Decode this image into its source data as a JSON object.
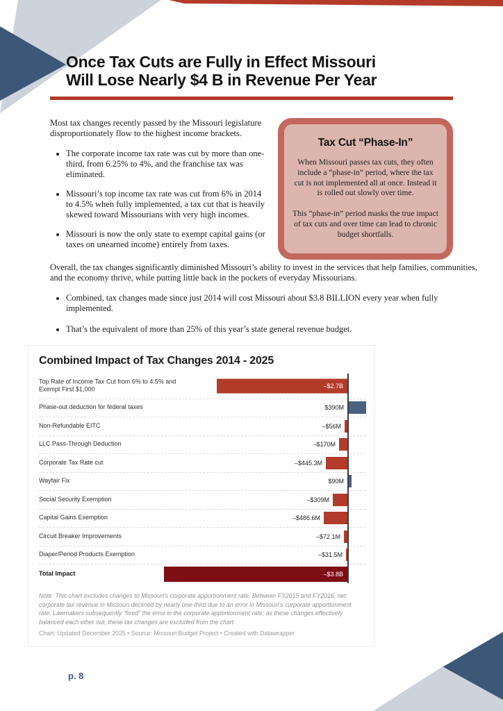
{
  "page": {
    "number_label": "p. 8"
  },
  "decor_colors": {
    "dark_blue": "#3d5778",
    "light_gray": "#ccd3db",
    "accent_red": "#b43a2a"
  },
  "header": {
    "title_line1": "Once Tax Cuts are Fully in Effect Missouri",
    "title_line2": "Will Lose Nearly $4 B in Revenue Per Year"
  },
  "intro": {
    "paragraph": "Most tax changes recently passed by the Missouri legislature disproportionately flow to the highest income brackets.",
    "bullets": [
      "The corporate income tax rate was cut by more than one-third, from 6.25% to 4%, and the franchise tax was eliminated.",
      "Missouri’s top income tax rate was cut from 6% in 2014 to 4.5% when fully implemented, a tax cut that is heavily skewed toward Missourians with very high incomes.",
      "Missouri is now the only state to exempt capital gains (or taxes on unearned income) entirely from taxes."
    ]
  },
  "callout": {
    "title": "Tax Cut “Phase-In”",
    "para1": "When Missouri passes tax cuts, they often include a “phase-in” period, where the tax cut is not implemented all at once. Instead it is rolled out slowly over time.",
    "para2": "This “phase-in” period masks the true impact of tax cuts and over time can lead to chronic budget shortfalls."
  },
  "overall": {
    "paragraph": "Overall, the tax changes significantly diminished Missouri’s ability to invest in the services that help families, communities, and the economy thrive, while putting little back in the pockets of everyday Missourians.",
    "bullets": [
      "Combined, tax changes made since just 2014 will cost Missouri about $3.8 BILLION every year when fully implemented.",
      "That’s the equivalent of more than 25% of this year’s state general revenue budget."
    ]
  },
  "chart_data": {
    "type": "bar",
    "orientation": "horizontal",
    "title": "Combined Impact of Tax Changes 2014 - 2025",
    "xlabel": "",
    "ylabel": "",
    "xlim_billions": [
      -3.8,
      0.5
    ],
    "grid": "row-separators-dashed",
    "legend": "none",
    "rows": [
      {
        "label": "Top Rate of Income Tax Cut from 6% to 4.5% and Exempt First $1,000",
        "value_billions": -2.7,
        "value_label": "–$2.7B",
        "kind": "negative",
        "label_inside": true
      },
      {
        "label": "Phase-out deduction for federal taxes",
        "value_billions": 0.39,
        "value_label": "$390M",
        "kind": "positive",
        "label_inside": false
      },
      {
        "label": "Non-Refundable EITC",
        "value_billions": -0.056,
        "value_label": "–$56M",
        "kind": "negative",
        "label_inside": false
      },
      {
        "label": "LLC Pass-Through Deduction",
        "value_billions": -0.17,
        "value_label": "–$170M",
        "kind": "negative",
        "label_inside": false
      },
      {
        "label": "Corporate Tax Rate cut",
        "value_billions": -0.4453,
        "value_label": "–$445.3M",
        "kind": "negative",
        "label_inside": false
      },
      {
        "label": "Wayfair Fix",
        "value_billions": 0.09,
        "value_label": "$90M",
        "kind": "positive",
        "label_inside": false
      },
      {
        "label": "Social Security Exemption",
        "value_billions": -0.309,
        "value_label": "–$309M",
        "kind": "negative",
        "label_inside": false
      },
      {
        "label": "Capital Gains Exemption",
        "value_billions": -0.4866,
        "value_label": "–$486.6M",
        "kind": "negative",
        "label_inside": false
      },
      {
        "label": "Circuit Breaker Improvements",
        "value_billions": -0.0721,
        "value_label": "–$72.1M",
        "kind": "negative",
        "label_inside": false
      },
      {
        "label": "Diaper/Period Products Exemption",
        "value_billions": -0.0315,
        "value_label": "–$31.5M",
        "kind": "negative",
        "label_inside": false
      },
      {
        "label": "Total Impact",
        "value_billions": -3.8,
        "value_label": "–$3.8B",
        "kind": "total",
        "label_inside": true
      }
    ],
    "colors": {
      "negative": "#b23b2a",
      "positive": "#4a617f",
      "total": "#7d0e13",
      "baseline": "#3a3a3a"
    },
    "note": "Note: This chart excludes changes to Missouri’s corporate apportionment rate. Between FY2015 and FY2016, net corporate tax revenue in Missouri declined by nearly one-third due to an error in Missouri’s corporate apportionment rate. Lawmakers subsequently “fixed” the error in the corporate apportionment rate; as these changes effectively balanced each other out, these tax changes are excluded from the chart.",
    "credit": "Chart: Updated December 2025 • Source: Missouri Budget Project • Created with Datawrapper"
  }
}
